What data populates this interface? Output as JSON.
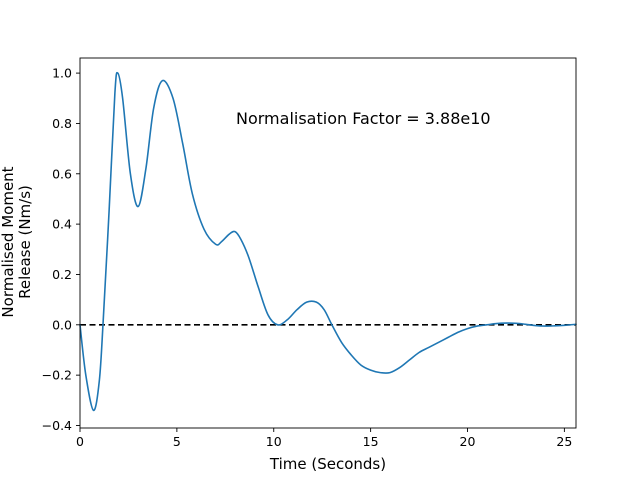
{
  "chart_data": {
    "type": "line",
    "title": "",
    "xlabel": "Time (Seconds)",
    "ylabel_lines": [
      "Normalised Moment",
      "Release (Nm/s)"
    ],
    "xlim": [
      0,
      25.6
    ],
    "ylim": [
      -0.41,
      1.06
    ],
    "xticks": [
      0,
      5,
      10,
      15,
      20,
      25
    ],
    "yticks": [
      -0.4,
      -0.2,
      0.0,
      0.2,
      0.4,
      0.6,
      0.8,
      1.0
    ],
    "ytick_labels": [
      "−0.4",
      "−0.2",
      "0.0",
      "0.2",
      "0.4",
      "0.6",
      "0.8",
      "1.0"
    ],
    "grid": false,
    "annotation": "Normalisation Factor = 3.88e10",
    "reference_line": {
      "y": 0.0,
      "style": "dashed",
      "color": "#000000"
    },
    "series": [
      {
        "color": "#1f77b4",
        "x": [
          0.0,
          0.3,
          0.7,
          1.0,
          1.2,
          1.5,
          1.8,
          1.95,
          2.2,
          2.6,
          3.0,
          3.4,
          3.8,
          4.25,
          4.8,
          5.3,
          5.8,
          6.4,
          7.0,
          7.3,
          7.7,
          8.0,
          8.3,
          8.7,
          9.2,
          9.7,
          10.2,
          10.7,
          11.2,
          11.7,
          12.2,
          12.6,
          13.0,
          13.5,
          14.0,
          14.5,
          15.0,
          15.5,
          16.0,
          16.5,
          17.0,
          17.5,
          18.0,
          18.5,
          19.0,
          19.5,
          20.0,
          20.5,
          21.0,
          21.5,
          22.0,
          22.5,
          23.0,
          23.5,
          24.0,
          24.5,
          25.0,
          25.6
        ],
        "y": [
          0.0,
          -0.2,
          -0.34,
          -0.22,
          0.02,
          0.45,
          0.92,
          1.0,
          0.9,
          0.6,
          0.47,
          0.62,
          0.86,
          0.97,
          0.9,
          0.72,
          0.52,
          0.38,
          0.32,
          0.33,
          0.36,
          0.37,
          0.34,
          0.27,
          0.15,
          0.04,
          0.0,
          0.02,
          0.06,
          0.09,
          0.09,
          0.06,
          0.0,
          -0.07,
          -0.12,
          -0.16,
          -0.18,
          -0.19,
          -0.19,
          -0.17,
          -0.14,
          -0.11,
          -0.09,
          -0.07,
          -0.05,
          -0.03,
          -0.015,
          -0.005,
          0.0,
          0.005,
          0.007,
          0.006,
          0.002,
          -0.003,
          -0.005,
          -0.004,
          -0.002,
          0.002
        ]
      }
    ]
  }
}
